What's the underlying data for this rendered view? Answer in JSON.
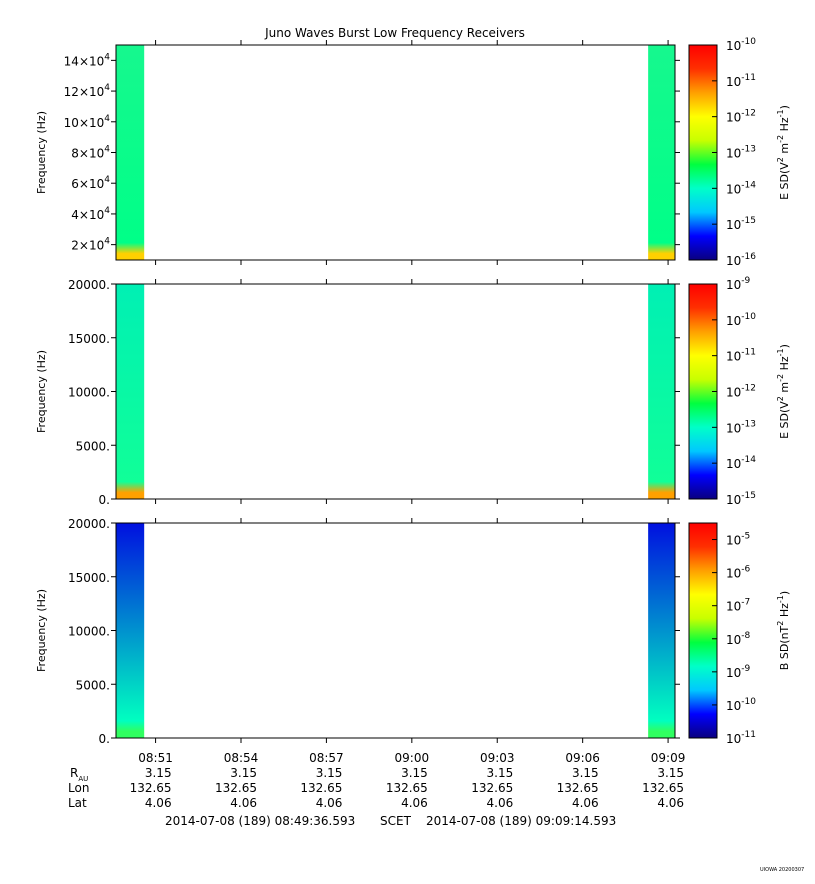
{
  "title": "Juno Waves Burst Low Frequency Receivers",
  "stamp": "UIOWA 20200307",
  "colorbar_colors": [
    "#0a0080",
    "#0000ff",
    "#00c8ff",
    "#00ffc8",
    "#00ff40",
    "#c8ff00",
    "#ffff00",
    "#ffa000",
    "#ff3000",
    "#ff0000"
  ],
  "chart_data": [
    {
      "type": "heatmap",
      "name": "panel-1",
      "ylabel": "Frequency (Hz)",
      "yticks": [
        {
          "value": 20000,
          "base": "2×10",
          "exp": "4"
        },
        {
          "value": 40000,
          "base": "4×10",
          "exp": "4"
        },
        {
          "value": 60000,
          "base": "6×10",
          "exp": "4"
        },
        {
          "value": 80000,
          "base": "8×10",
          "exp": "4"
        },
        {
          "value": 100000,
          "base": "10×10",
          "exp": "4"
        },
        {
          "value": 120000,
          "base": "12×10",
          "exp": "4"
        },
        {
          "value": 140000,
          "base": "14×10",
          "exp": "4"
        }
      ],
      "ylim": [
        10000,
        150000
      ],
      "colorbar_label": {
        "a": "E SD(V",
        "b": "2",
        "c": " m",
        "d": "-2",
        "e": " Hz",
        "f": "-1",
        "g": ")"
      },
      "colorbar_ticks": [
        "-10",
        "-11",
        "-12",
        "-13",
        "-14",
        "-15",
        "-16"
      ],
      "colorbar_range": [
        -16,
        -10
      ],
      "data_color_start": "#16f88e",
      "data_color_end": "#00ff88",
      "bottom_color": "#ffd000"
    },
    {
      "type": "heatmap",
      "name": "panel-2",
      "ylabel": "Frequency (Hz)",
      "yticks": [
        {
          "value": 0,
          "base": "0.",
          "exp": ""
        },
        {
          "value": 5000,
          "base": "5000.",
          "exp": ""
        },
        {
          "value": 10000,
          "base": "10000.",
          "exp": ""
        },
        {
          "value": 15000,
          "base": "15000.",
          "exp": ""
        },
        {
          "value": 20000,
          "base": "20000.",
          "exp": ""
        }
      ],
      "ylim": [
        0,
        20000
      ],
      "colorbar_label": {
        "a": "E SD(V",
        "b": "2",
        "c": " m",
        "d": "-2",
        "e": " Hz",
        "f": "-1",
        "g": ")"
      },
      "colorbar_ticks": [
        "-9",
        "-10",
        "-11",
        "-12",
        "-13",
        "-14",
        "-15"
      ],
      "colorbar_range": [
        -15,
        -9
      ],
      "data_color_start": "#00f0b4",
      "data_color_end": "#10ff98",
      "bottom_color": "#ffa000"
    },
    {
      "type": "heatmap",
      "name": "panel-3",
      "ylabel": "Frequency (Hz)",
      "yticks": [
        {
          "value": 0,
          "base": "0.",
          "exp": ""
        },
        {
          "value": 5000,
          "base": "5000.",
          "exp": ""
        },
        {
          "value": 10000,
          "base": "10000.",
          "exp": ""
        },
        {
          "value": 15000,
          "base": "15000.",
          "exp": ""
        },
        {
          "value": 20000,
          "base": "20000.",
          "exp": ""
        }
      ],
      "ylim": [
        0,
        20000
      ],
      "colorbar_label": {
        "a": "B SD(nT",
        "b": "2",
        "c": "",
        "d": "",
        "e": " Hz",
        "f": "-1",
        "g": ")"
      },
      "colorbar_ticks": [
        "-5",
        "-6",
        "-7",
        "-8",
        "-9",
        "-10",
        "-11"
      ],
      "colorbar_range": [
        -11,
        -4.5
      ],
      "data_color_start": "#0010e0",
      "data_color_end": "#00ffc0",
      "bottom_color": "#30ff60"
    }
  ],
  "xaxis": {
    "ticks": [
      "08:51",
      "08:54",
      "08:57",
      "09:00",
      "09:03",
      "09:06",
      "09:09"
    ],
    "start_min": 529.6099,
    "end_min": 549.2432,
    "data_blocks": [
      [
        529.6099,
        530.6
      ],
      [
        548.3,
        549.2432
      ]
    ]
  },
  "ephemeris": {
    "labels": {
      "r": "R",
      "r_sub": "AU",
      "lon": "Lon",
      "lat": "Lat"
    },
    "r": [
      "3.15",
      "3.15",
      "3.15",
      "3.15",
      "3.15",
      "3.15",
      "3.15"
    ],
    "lon": [
      "132.65",
      "132.65",
      "132.65",
      "132.65",
      "132.65",
      "132.65",
      "132.65"
    ],
    "lat": [
      "4.06",
      "4.06",
      "4.06",
      "4.06",
      "4.06",
      "4.06",
      "4.06"
    ]
  },
  "time_range": {
    "start": "2014-07-08 (189) 08:49:36.593",
    "mid": "SCET",
    "end": "2014-07-08 (189) 09:09:14.593"
  },
  "ten": "10"
}
